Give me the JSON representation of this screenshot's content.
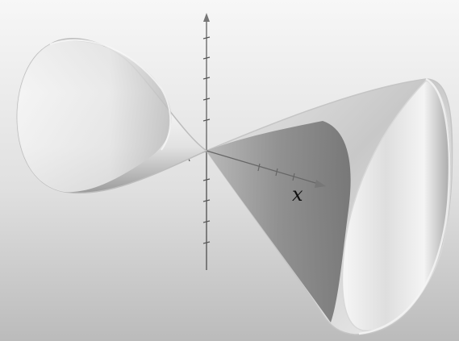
{
  "figure": {
    "axis_labels": {
      "x": "x"
    }
  },
  "colors": {
    "background_top": "#f6f6f6",
    "background_bottom": "#bdbdbd",
    "surface_light": "#fbfbfb",
    "surface_mid": "#cfcfcf",
    "surface_dark": "#8c8c8c",
    "axis": "#505050"
  }
}
